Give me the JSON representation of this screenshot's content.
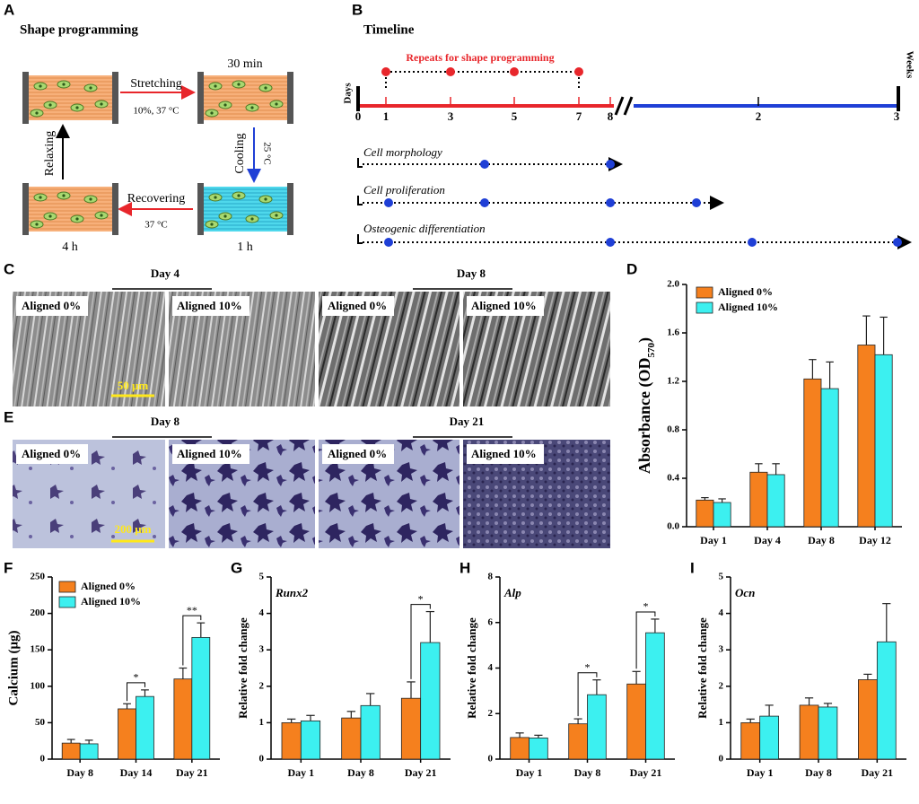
{
  "panel_letters": [
    "A",
    "B",
    "C",
    "D",
    "E",
    "F",
    "G",
    "H",
    "I"
  ],
  "shape_programming": {
    "title": "Shape programming",
    "stretching": "Stretching",
    "stretching_condition": "10%, 37 °C",
    "stretched_time": "30 min",
    "cooling": "Cooling",
    "cooling_condition": "25 °C",
    "cooled_time": "1 h",
    "recovering": "Recovering",
    "recovering_condition": "37 °C",
    "recovered_time": "4 h",
    "relaxing": "Relaxing"
  },
  "timeline": {
    "title": "Timeline",
    "repeats": "Repeats for shape programming",
    "days_label": "Days",
    "weeks_label": "Weeks",
    "day_ticks": [
      "0",
      "1",
      "3",
      "5",
      "7",
      "8"
    ],
    "week_ticks": [
      "2",
      "3"
    ],
    "assays": [
      "Cell morphology",
      "Cell proliferation",
      "Osteogenic differentiation"
    ]
  },
  "sem_images": {
    "groups": [
      {
        "day": "Day 4",
        "labels": [
          "Aligned 0%",
          "Aligned 10%"
        ]
      },
      {
        "day": "Day 8",
        "labels": [
          "Aligned 0%",
          "Aligned 10%"
        ]
      }
    ],
    "scale_bar": "50 μm"
  },
  "staining_images": {
    "groups": [
      {
        "day": "Day 8",
        "labels": [
          "Aligned 0%",
          "Aligned 10%"
        ]
      },
      {
        "day": "Day 21",
        "labels": [
          "Aligned 0%",
          "Aligned 10%"
        ]
      }
    ],
    "scale_bar": "200 μm"
  },
  "chart_data": [
    {
      "type": "bar",
      "ylabel": {
        "main": "Absorbance (OD",
        "sub": "570",
        "end": ")"
      },
      "categories": [
        "Day 1",
        "Day 4",
        "Day 8",
        "Day 12"
      ],
      "series": [
        {
          "name": "Aligned 0%",
          "color": "#f5801e",
          "values": [
            0.22,
            0.45,
            1.22,
            1.5
          ],
          "errors": [
            0.02,
            0.07,
            0.16,
            0.24
          ]
        },
        {
          "name": "Aligned 10%",
          "color": "#3cf0f0",
          "values": [
            0.2,
            0.43,
            1.14,
            1.42
          ],
          "errors": [
            0.03,
            0.09,
            0.22,
            0.31
          ]
        }
      ],
      "ylim": [
        0,
        2
      ],
      "yticks": [
        {
          "value": 0,
          "label": "0.0"
        },
        0.4,
        0.8,
        1.2,
        1.6,
        {
          "value": 2,
          "label": "2.0"
        }
      ],
      "legend": "upper left"
    },
    {
      "type": "bar",
      "ylabel": "Calcium (μg)",
      "categories": [
        "Day 8",
        "Day 14",
        "Day 21"
      ],
      "series": [
        {
          "name": "Aligned 0%",
          "color": "#f5801e",
          "values": [
            22,
            69,
            110
          ],
          "errors": [
            5,
            7,
            15
          ]
        },
        {
          "name": "Aligned 10%",
          "color": "#3cf0f0",
          "values": [
            21,
            86,
            167
          ],
          "errors": [
            5,
            9,
            20
          ]
        }
      ],
      "ylim": [
        0,
        250
      ],
      "yticks": [
        0,
        50,
        100,
        150,
        200,
        250
      ],
      "legend": "upper left",
      "significance": [
        {
          "category": "Day 14",
          "label": "*"
        },
        {
          "category": "Day 21",
          "label": "**"
        }
      ]
    },
    {
      "type": "bar",
      "title": "Runx2",
      "ylabel": "Relative fold change",
      "categories": [
        "Day 1",
        "Day 8",
        "Day 21"
      ],
      "series": [
        {
          "color": "#f5801e",
          "values": [
            1.0,
            1.13,
            1.67
          ],
          "errors": [
            0.1,
            0.18,
            0.45
          ]
        },
        {
          "color": "#3cf0f0",
          "values": [
            1.05,
            1.47,
            3.2
          ],
          "errors": [
            0.15,
            0.33,
            0.85
          ]
        }
      ],
      "ylim": [
        0,
        5
      ],
      "yticks": [
        0,
        1,
        2,
        3,
        4,
        5
      ],
      "significance": [
        {
          "category": "Day 21",
          "label": "*"
        }
      ]
    },
    {
      "type": "bar",
      "title": "Alp",
      "ylabel": "Relative fold change",
      "categories": [
        "Day 1",
        "Day 8",
        "Day 21"
      ],
      "series": [
        {
          "color": "#f5801e",
          "values": [
            0.95,
            1.55,
            3.3
          ],
          "errors": [
            0.2,
            0.22,
            0.55
          ]
        },
        {
          "color": "#3cf0f0",
          "values": [
            0.93,
            2.83,
            5.55
          ],
          "errors": [
            0.12,
            0.65,
            0.6
          ]
        }
      ],
      "ylim": [
        0,
        8
      ],
      "yticks": [
        0,
        2,
        4,
        6,
        8
      ],
      "significance": [
        {
          "category": "Day 8",
          "label": "*"
        },
        {
          "category": "Day 21",
          "label": "*"
        }
      ]
    },
    {
      "type": "bar",
      "title": "Ocn",
      "ylabel": "Relative fold change",
      "categories": [
        "Day 1",
        "Day 8",
        "Day 21"
      ],
      "series": [
        {
          "color": "#f5801e",
          "values": [
            1.0,
            1.48,
            2.18
          ],
          "errors": [
            0.1,
            0.2,
            0.15
          ]
        },
        {
          "color": "#3cf0f0",
          "values": [
            1.18,
            1.43,
            3.22
          ],
          "errors": [
            0.3,
            0.1,
            1.05
          ]
        }
      ],
      "ylim": [
        0,
        5
      ],
      "yticks": [
        0,
        1,
        2,
        3,
        4,
        5
      ]
    }
  ]
}
